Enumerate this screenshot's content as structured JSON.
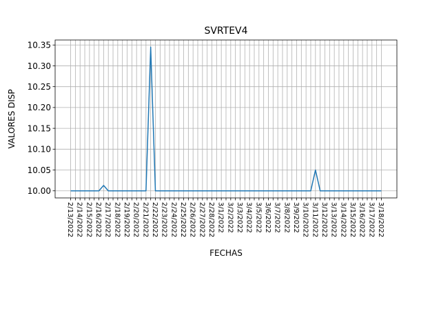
{
  "chart_data": {
    "type": "line",
    "title": "SVRTEV4",
    "xlabel": "FECHAS",
    "ylabel": "VALORES DISP",
    "categories": [
      "2/13/2022",
      "2/14/2022",
      "2/15/2022",
      "2/16/2022",
      "2/17/2022",
      "2/18/2022",
      "2/19/2022",
      "2/20/2022",
      "2/21/2022",
      "2/22/2022",
      "2/23/2022",
      "2/24/2022",
      "2/25/2022",
      "2/26/2022",
      "2/27/2022",
      "2/28/2022",
      "3/1/2022",
      "3/2/2022",
      "3/3/2022",
      "3/4/2022",
      "3/5/2022",
      "3/6/2022",
      "3/7/2022",
      "3/8/2022",
      "3/9/2022",
      "3/10/2022",
      "3/11/2022",
      "3/12/2022",
      "3/13/2022",
      "3/14/2022",
      "3/15/2022",
      "3/16/2022",
      "3/17/2022",
      "3/18/2022"
    ],
    "x": [
      0,
      0.5,
      1,
      1.5,
      2,
      2.5,
      3,
      3.5,
      4,
      4.5,
      5,
      5.5,
      6,
      6.5,
      7,
      7.5,
      8,
      8.5,
      9,
      9.5,
      10,
      10.5,
      11,
      11.5,
      12,
      12.5,
      13,
      13.5,
      14,
      14.5,
      15,
      15.5,
      16,
      16.5,
      17,
      17.5,
      18,
      18.5,
      19,
      19.5,
      20,
      20.5,
      21,
      21.5,
      22,
      22.5,
      23,
      23.5,
      24,
      24.5,
      25,
      25.5,
      26,
      26.5,
      27,
      27.5,
      28,
      28.5,
      29,
      29.5,
      30,
      30.5,
      31,
      31.5,
      32,
      32.5,
      33
    ],
    "series": [
      {
        "values": [
          10,
          10,
          10,
          10,
          10,
          10,
          10,
          10.013,
          10,
          10,
          10,
          10,
          10,
          10,
          10,
          10,
          10,
          10.345,
          10,
          10,
          10,
          10,
          10,
          10,
          10,
          10,
          10,
          10,
          10,
          10,
          10,
          10,
          10,
          10,
          10,
          10,
          10,
          10,
          10,
          10,
          10,
          10,
          10,
          10,
          10,
          10,
          10,
          10,
          10,
          10,
          10,
          10,
          10.05,
          10,
          10,
          10,
          10,
          10,
          10,
          10,
          10,
          10,
          10,
          10,
          10,
          10,
          10
        ],
        "color": "#1f77b4"
      }
    ],
    "xlim": [
      -1.65,
      34.65
    ],
    "ylim": [
      9.983,
      10.362
    ],
    "yticks": [
      "10.00",
      "10.05",
      "10.10",
      "10.15",
      "10.20",
      "10.25",
      "10.30",
      "10.35"
    ],
    "grid": true,
    "legend": false
  }
}
